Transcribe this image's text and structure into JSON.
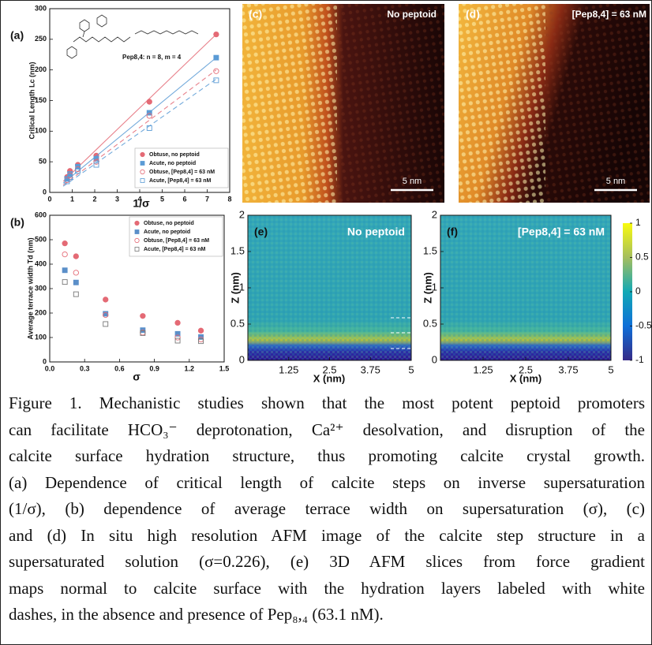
{
  "chart_data": [
    {
      "type": "scatter",
      "panel_label": "(a)",
      "annotation": "Pep8,4: n = 8, m = 4",
      "xlabel": "1/σ",
      "ylabel": "Critical Length Lc (nm)",
      "xlim": [
        0,
        8
      ],
      "xticks": [
        0,
        1,
        2,
        3,
        4,
        5,
        6,
        7,
        8
      ],
      "ylim": [
        0,
        300
      ],
      "yticks": [
        0,
        50,
        100,
        150,
        200,
        250,
        300
      ],
      "legend": "lower right",
      "x": [
        0.77,
        0.9,
        1.25,
        2.07,
        4.43,
        7.4
      ],
      "series": [
        {
          "name": "Obtuse, no peptoid",
          "color": "#e46a75",
          "marker": "circle",
          "filled": true,
          "line_style": "solid",
          "values": [
            25,
            35,
            45,
            60,
            148,
            258
          ],
          "fit_x": [
            0.6,
            7.4
          ],
          "fit_values": [
            18,
            258
          ]
        },
        {
          "name": "Acute, no peptoid",
          "color": "#5b9bd5",
          "marker": "square",
          "filled": true,
          "line_style": "solid",
          "values": [
            22,
            30,
            42,
            55,
            130,
            220
          ],
          "fit_x": [
            0.6,
            7.4
          ],
          "fit_values": [
            15,
            220
          ]
        },
        {
          "name": "Obtuse, [Pep8,4] = 63 nM",
          "color": "#e46a75",
          "marker": "circle",
          "filled": false,
          "line_style": "dashed",
          "values": [
            20,
            28,
            38,
            50,
            125,
            198
          ],
          "fit_x": [
            0.6,
            7.4
          ],
          "fit_values": [
            12,
            200
          ]
        },
        {
          "name": "Acute, [Pep8,4] = 63 nM",
          "color": "#5b9bd5",
          "marker": "square",
          "filled": false,
          "line_style": "dashed",
          "values": [
            18,
            25,
            35,
            45,
            105,
            183
          ],
          "fit_x": [
            0.6,
            7.4
          ],
          "fit_values": [
            10,
            185
          ]
        }
      ]
    },
    {
      "type": "scatter",
      "panel_label": "(b)",
      "xlabel": "σ",
      "ylabel": "Average terrace width Td (nm)",
      "xlim": [
        0,
        1.5
      ],
      "xticks": [
        {
          "value": 0,
          "label": "0.0"
        },
        0.3,
        0.6,
        0.9,
        1.2,
        1.5
      ],
      "ylim": [
        0,
        600
      ],
      "yticks": [
        0,
        100,
        200,
        300,
        400,
        500,
        600
      ],
      "legend": "upper right",
      "x": [
        0.13,
        0.226,
        0.48,
        0.8,
        1.1,
        1.3
      ],
      "series": [
        {
          "name": "Obtuse, no peptoid",
          "color": "#e46a75",
          "marker": "circle",
          "filled": true,
          "values": [
            485,
            432,
            255,
            188,
            160,
            128
          ]
        },
        {
          "name": "Acute, no peptoid",
          "color": "#5b8fc9",
          "marker": "square",
          "filled": true,
          "values": [
            375,
            325,
            197,
            130,
            115,
            102
          ]
        },
        {
          "name": "Obtuse, [Pep8,4] = 63 nM",
          "color": "#e46a75",
          "marker": "circle",
          "filled": false,
          "values": [
            440,
            365,
            192,
            120,
            100,
            92
          ]
        },
        {
          "name": "Acute, [Pep8,4] = 63 nM",
          "color": "#777777",
          "marker": "square",
          "filled": false,
          "values": [
            327,
            277,
            155,
            118,
            87,
            85
          ]
        }
      ]
    },
    {
      "type": "heatmap",
      "panel_label": "(e)",
      "title": "No peptoid",
      "xlabel": "X (nm)",
      "ylabel": "Z (nm)",
      "xlim": [
        0,
        5
      ],
      "xticks": [
        1.25,
        2.5,
        3.75,
        5
      ],
      "ylim": [
        0,
        2
      ],
      "yticks": [
        0,
        0.5,
        1,
        1.5,
        2
      ]
    },
    {
      "type": "heatmap",
      "panel_label": "(f)",
      "title": "[Pep8,4] = 63 nM",
      "xlabel": "X (nm)",
      "ylabel": "Z (nm)",
      "xlim": [
        0,
        5
      ],
      "xticks": [
        1.25,
        2.5,
        3.75,
        5
      ],
      "ylim": [
        0,
        2
      ],
      "yticks": [
        0,
        0.5,
        1,
        1.5,
        2
      ],
      "clim": [
        -1,
        1
      ],
      "colorbar_ticks": [
        1,
        0.5,
        0,
        -0.5,
        -1
      ]
    }
  ],
  "images": [
    {
      "label": "(c)",
      "title": "No peptoid",
      "scale_bar": "5 nm"
    },
    {
      "label": "(d)",
      "title": "[Pep8,4] = 63 nM",
      "scale_bar": "5 nm"
    }
  ],
  "caption": [
    "Figure 1. Mechanistic studies shown that the most potent peptoid promoters",
    "can facilitate HCO₃⁻ deprotonation, Ca²⁺ desolvation, and disruption of the",
    "calcite surface hydration structure, thus promoting calcite crystal growth.",
    "(a) Dependence of critical length of calcite steps on inverse supersaturation",
    "(1/σ), (b) dependence of average terrace width on supersaturation (σ), (c)",
    "and (d) In situ high resolution AFM image of the calcite step structure in a",
    "supersaturated solution (σ=0.226), (e) 3D AFM slices from force gradient",
    "maps normal to calcite surface with the hydration layers labeled with white",
    "dashes, in the absence and presence of Pep₈,₄ (63.1 nM)."
  ]
}
